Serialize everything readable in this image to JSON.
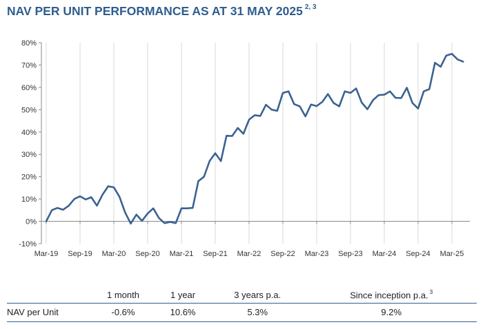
{
  "title": "NAV PER UNIT PERFORMANCE AS AT 31 MAY 2025",
  "title_superscript": "2, 3",
  "chart_data": {
    "type": "line",
    "title": "NAV PER UNIT PERFORMANCE AS AT 31 MAY 2025",
    "xlabel": "",
    "ylabel": "",
    "ylim": [
      -10,
      80
    ],
    "y_ticks": [
      "-10%",
      "0%",
      "10%",
      "20%",
      "30%",
      "40%",
      "50%",
      "60%",
      "70%",
      "80%"
    ],
    "x_tick_labels": [
      "Mar-19",
      "Sep-19",
      "Mar-20",
      "Sep-20",
      "Mar-21",
      "Sep-21",
      "Mar-22",
      "Sep-22",
      "Mar-23",
      "Sep-23",
      "Mar-24",
      "Sep-24",
      "Mar-25"
    ],
    "grid": "vertical",
    "line_color": "#3a6291",
    "series": [
      {
        "x_start": "Mar-19",
        "frequency": "monthly",
        "values": [
          0,
          5,
          6,
          5.2,
          7,
          10,
          11.2,
          9.8,
          10.8,
          7,
          12,
          15.7,
          15.2,
          11,
          4,
          -1,
          3,
          0.2,
          3.5,
          5.8,
          1.5,
          -0.8,
          -0.3,
          -0.8,
          5.8,
          5.8,
          6,
          18,
          20,
          27,
          30.5,
          27,
          38.3,
          38.2,
          41.8,
          39.2,
          45.5,
          47.5,
          47.2,
          52.2,
          50,
          49.5,
          57.5,
          58.2,
          52.5,
          51.5,
          47,
          52.3,
          51.6,
          53.5,
          57,
          53,
          51.5,
          58.2,
          57.5,
          59.5,
          53.2,
          50.2,
          54.3,
          56.5,
          56.7,
          58.2,
          55.3,
          55.2,
          59.8,
          53,
          50.5,
          58.2,
          59.2,
          71,
          69.2,
          74.2,
          75,
          72.5,
          71.5
        ]
      }
    ]
  },
  "table": {
    "columns": [
      "",
      "1 month",
      "1 year",
      "3 years p.a.",
      "Since inception p.a."
    ],
    "last_column_superscript": "3",
    "rows": [
      {
        "label": "NAV per Unit",
        "values": [
          "-0.6%",
          "10.6%",
          "5.3%",
          "9.2%"
        ]
      }
    ]
  }
}
